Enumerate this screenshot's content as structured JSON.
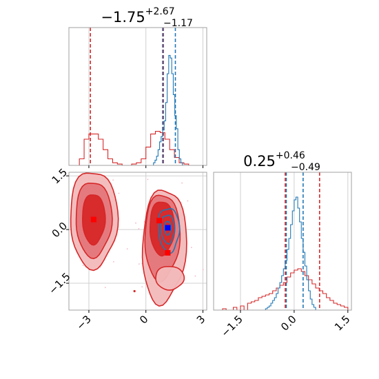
{
  "colors": {
    "red": "#d62728",
    "red_fill_mid": "#e4767a",
    "red_fill_light": "#f2b9bb",
    "blue": "#1f77b4",
    "grid": "#d0d0d0",
    "frame": "#a0a0a0"
  },
  "chart_data": {
    "type": "corner",
    "grid": true,
    "params": [
      {
        "title_value": "−1.75",
        "title_plus": "+2.67",
        "title_minus": "−1.17",
        "range": [
          -4.05,
          3.2
        ],
        "ticks": [
          -3,
          0,
          3
        ],
        "tick_labels": [
          "−3",
          "0",
          "3"
        ]
      },
      {
        "title_value": "0.25",
        "title_plus": "+0.46",
        "title_minus": "−0.49",
        "range": [
          -2.25,
          1.6
        ],
        "ticks": [
          -1.5,
          0,
          1.5
        ],
        "tick_labels": [
          "−1.5",
          "0.0",
          "1.5"
        ]
      }
    ],
    "series": [
      {
        "color": "#d62728",
        "hist_x": {
          "bin_width": 0.25,
          "bins": [
            [
              -3.5,
              0.05
            ],
            [
              -3.25,
              0.2
            ],
            [
              -3.0,
              0.24
            ],
            [
              -2.75,
              0.24
            ],
            [
              -2.5,
              0.2
            ],
            [
              -2.25,
              0.12
            ],
            [
              -2.0,
              0.05
            ],
            [
              -1.75,
              0.02
            ],
            [
              -1.5,
              0.01
            ],
            [
              -0.75,
              0.01
            ],
            [
              -0.5,
              0.02
            ],
            [
              -0.25,
              0.05
            ],
            [
              0.0,
              0.14
            ],
            [
              0.25,
              0.24
            ],
            [
              0.5,
              0.26
            ],
            [
              0.75,
              0.25
            ],
            [
              1.0,
              0.2
            ],
            [
              1.25,
              0.12
            ],
            [
              1.5,
              0.06
            ],
            [
              1.75,
              0.02
            ],
            [
              2.0,
              0.01
            ]
          ],
          "quantile_lines": [
            -2.92,
            0.92
          ]
        },
        "hist_y": {
          "bin_width": 0.1,
          "bins": [
            [
              -2.0,
              0.01
            ],
            [
              -1.7,
              0.02
            ],
            [
              -1.5,
              0.03
            ],
            [
              -1.3,
              0.05
            ],
            [
              -1.2,
              0.06
            ],
            [
              -1.1,
              0.07
            ],
            [
              -1.0,
              0.09
            ],
            [
              -0.9,
              0.1
            ],
            [
              -0.8,
              0.11
            ],
            [
              -0.7,
              0.12
            ],
            [
              -0.6,
              0.14
            ],
            [
              -0.5,
              0.16
            ],
            [
              -0.4,
              0.18
            ],
            [
              -0.3,
              0.2
            ],
            [
              -0.2,
              0.24
            ],
            [
              -0.1,
              0.27
            ],
            [
              0.0,
              0.29
            ],
            [
              0.1,
              0.3
            ],
            [
              0.2,
              0.28
            ],
            [
              0.3,
              0.25
            ],
            [
              0.4,
              0.22
            ],
            [
              0.5,
              0.19
            ],
            [
              0.6,
              0.16
            ],
            [
              0.7,
              0.14
            ],
            [
              0.8,
              0.12
            ],
            [
              0.9,
              0.09
            ],
            [
              1.0,
              0.07
            ],
            [
              1.1,
              0.05
            ],
            [
              1.2,
              0.04
            ],
            [
              1.3,
              0.03
            ],
            [
              1.4,
              0.02
            ]
          ],
          "quantile_lines": [
            -0.25,
            0.71
          ]
        },
        "truth_points": [
          [
            -2.75,
            0.28
          ],
          [
            0.7,
            0.25
          ],
          [
            1.15,
            -0.65
          ]
        ]
      },
      {
        "color": "#1f77b4",
        "hist_x": {
          "bin_width": 0.08,
          "bins": [
            [
              0.4,
              0.02
            ],
            [
              0.48,
              0.04
            ],
            [
              0.56,
              0.07
            ],
            [
              0.64,
              0.12
            ],
            [
              0.72,
              0.18
            ],
            [
              0.8,
              0.22
            ],
            [
              0.88,
              0.27
            ],
            [
              0.96,
              0.34
            ],
            [
              1.04,
              0.48
            ],
            [
              1.12,
              0.7
            ],
            [
              1.2,
              0.84
            ],
            [
              1.28,
              0.82
            ],
            [
              1.36,
              0.7
            ],
            [
              1.44,
              0.54
            ],
            [
              1.52,
              0.38
            ],
            [
              1.6,
              0.28
            ],
            [
              1.68,
              0.12
            ],
            [
              1.76,
              0.05
            ],
            [
              1.84,
              0.02
            ]
          ],
          "quantile_lines": [
            0.88,
            1.55
          ]
        },
        "hist_y": {
          "bin_width": 0.05,
          "bins": [
            [
              -0.8,
              0.01
            ],
            [
              -0.75,
              0.02
            ],
            [
              -0.7,
              0.03
            ],
            [
              -0.65,
              0.05
            ],
            [
              -0.6,
              0.07
            ],
            [
              -0.55,
              0.09
            ],
            [
              -0.5,
              0.12
            ],
            [
              -0.45,
              0.16
            ],
            [
              -0.4,
              0.2
            ],
            [
              -0.35,
              0.25
            ],
            [
              -0.3,
              0.3
            ],
            [
              -0.25,
              0.36
            ],
            [
              -0.2,
              0.44
            ],
            [
              -0.15,
              0.52
            ],
            [
              -0.1,
              0.62
            ],
            [
              -0.05,
              0.72
            ],
            [
              0.0,
              0.8
            ],
            [
              0.05,
              0.82
            ],
            [
              0.1,
              0.74
            ],
            [
              0.15,
              0.64
            ],
            [
              0.2,
              0.52
            ],
            [
              0.25,
              0.42
            ],
            [
              0.3,
              0.32
            ],
            [
              0.35,
              0.22
            ],
            [
              0.4,
              0.14
            ],
            [
              0.45,
              0.08
            ],
            [
              0.5,
              0.04
            ],
            [
              0.55,
              0.02
            ]
          ],
          "quantile_lines": [
            -0.22,
            0.25
          ]
        },
        "truth_points": [
          [
            1.15,
            0.05
          ]
        ]
      }
    ]
  }
}
